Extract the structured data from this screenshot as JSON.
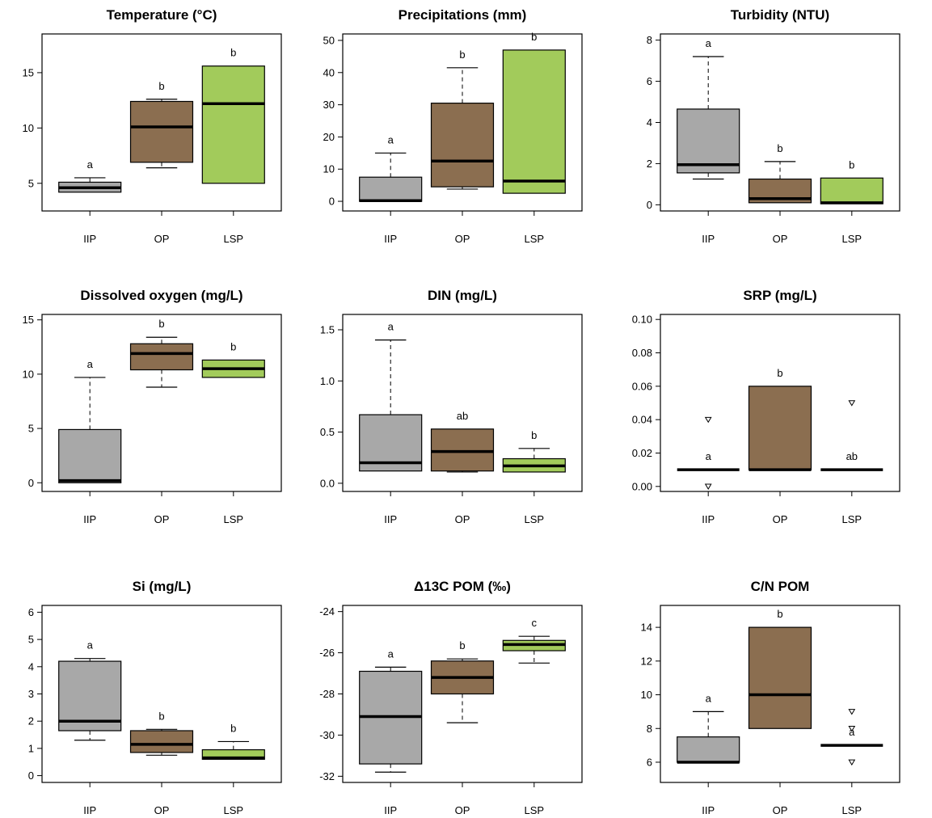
{
  "colors": {
    "IIP": "#a8a8a8",
    "OP": "#8b6e50",
    "LSP": "#a2cb5b"
  },
  "chart_data": [
    {
      "type": "box",
      "title": "Temperature (°C)",
      "categories": [
        "IIP",
        "OP",
        "LSP"
      ],
      "ylim": [
        2.5,
        18.5
      ],
      "yticks": [
        5,
        10,
        15
      ],
      "boxes": [
        {
          "min": 4.2,
          "q1": 4.2,
          "median": 4.6,
          "q3": 5.1,
          "max": 5.5,
          "sig": "a"
        },
        {
          "min": 6.4,
          "q1": 6.9,
          "median": 10.1,
          "q3": 12.4,
          "max": 12.6,
          "sig": "b"
        },
        {
          "min": 5.0,
          "q1": 5.0,
          "median": 12.2,
          "q3": 15.6,
          "max": 15.6,
          "sig": "b"
        }
      ],
      "outliers": []
    },
    {
      "type": "box",
      "title": "Precipitations (mm)",
      "categories": [
        "IIP",
        "OP",
        "LSP"
      ],
      "ylim": [
        -3,
        52
      ],
      "yticks": [
        0,
        10,
        20,
        30,
        40,
        50
      ],
      "boxes": [
        {
          "min": 0,
          "q1": 0,
          "median": 0.2,
          "q3": 7.5,
          "max": 15.0,
          "sig": "a"
        },
        {
          "min": 3.8,
          "q1": 4.5,
          "median": 12.5,
          "q3": 30.5,
          "max": 41.5,
          "sig": "b"
        },
        {
          "min": 2.5,
          "q1": 2.5,
          "median": 6.3,
          "q3": 47.0,
          "max": 47.0,
          "sig": "b"
        }
      ],
      "outliers": []
    },
    {
      "type": "box",
      "title": "Turbidity (NTU)",
      "categories": [
        "IIP",
        "OP",
        "LSP"
      ],
      "ylim": [
        -0.3,
        8.3
      ],
      "yticks": [
        0,
        2,
        4,
        6,
        8
      ],
      "boxes": [
        {
          "min": 1.25,
          "q1": 1.55,
          "median": 1.95,
          "q3": 4.65,
          "max": 7.2,
          "sig": "a"
        },
        {
          "min": 0.1,
          "q1": 0.1,
          "median": 0.3,
          "q3": 1.25,
          "max": 2.1,
          "sig": "b"
        },
        {
          "min": 0.05,
          "q1": 0.05,
          "median": 0.1,
          "q3": 1.3,
          "max": 1.3,
          "sig": "b"
        }
      ],
      "outliers": []
    },
    {
      "type": "box",
      "title": "Dissolved oxygen (mg/L)",
      "categories": [
        "IIP",
        "OP",
        "LSP"
      ],
      "ylim": [
        -0.8,
        15.5
      ],
      "yticks": [
        0,
        5,
        10,
        15
      ],
      "boxes": [
        {
          "min": 0,
          "q1": 0,
          "median": 0.2,
          "q3": 4.9,
          "max": 9.7,
          "sig": "a"
        },
        {
          "min": 8.8,
          "q1": 10.4,
          "median": 11.9,
          "q3": 12.8,
          "max": 13.4,
          "sig": "b"
        },
        {
          "min": 9.7,
          "q1": 9.7,
          "median": 10.5,
          "q3": 11.3,
          "max": 11.3,
          "sig": "b"
        }
      ],
      "outliers": []
    },
    {
      "type": "box",
      "title": "DIN (mg/L)",
      "categories": [
        "IIP",
        "OP",
        "LSP"
      ],
      "ylim": [
        -0.08,
        1.65
      ],
      "yticks": [
        0.0,
        0.5,
        1.0,
        1.5
      ],
      "tick_labels": [
        "0.0",
        "0.5",
        "1.0",
        "1.5"
      ],
      "boxes": [
        {
          "min": 0.12,
          "q1": 0.12,
          "median": 0.2,
          "q3": 0.67,
          "max": 1.4,
          "sig": "a"
        },
        {
          "min": 0.11,
          "q1": 0.12,
          "median": 0.31,
          "q3": 0.53,
          "max": 0.53,
          "sig": "ab"
        },
        {
          "min": 0.11,
          "q1": 0.11,
          "median": 0.17,
          "q3": 0.24,
          "max": 0.34,
          "sig": "b"
        }
      ],
      "outliers": []
    },
    {
      "type": "box",
      "title": "SRP (mg/L)",
      "categories": [
        "IIP",
        "OP",
        "LSP"
      ],
      "ylim": [
        -0.003,
        0.103
      ],
      "yticks": [
        0.0,
        0.02,
        0.04,
        0.06,
        0.08,
        0.1
      ],
      "tick_labels": [
        "0.00",
        "0.02",
        "0.04",
        "0.06",
        "0.08",
        "0.10"
      ],
      "boxes": [
        {
          "min": 0.01,
          "q1": 0.01,
          "median": 0.01,
          "q3": 0.01,
          "max": 0.01,
          "sig": "a"
        },
        {
          "min": 0.01,
          "q1": 0.01,
          "median": 0.01,
          "q3": 0.06,
          "max": 0.06,
          "sig": "b"
        },
        {
          "min": 0.01,
          "q1": 0.01,
          "median": 0.01,
          "q3": 0.01,
          "max": 0.01,
          "sig": "ab"
        }
      ],
      "outliers": [
        {
          "group": 0,
          "value": 0.04
        },
        {
          "group": 0,
          "value": 0.0
        },
        {
          "group": 2,
          "value": 0.05
        }
      ]
    },
    {
      "type": "box",
      "title": "Si (mg/L)",
      "categories": [
        "IIP",
        "OP",
        "LSP"
      ],
      "ylim": [
        -0.25,
        6.25
      ],
      "yticks": [
        0,
        1,
        2,
        3,
        4,
        5,
        6
      ],
      "boxes": [
        {
          "min": 1.3,
          "q1": 1.65,
          "median": 2.0,
          "q3": 4.2,
          "max": 4.3,
          "sig": "a"
        },
        {
          "min": 0.75,
          "q1": 0.85,
          "median": 1.15,
          "q3": 1.65,
          "max": 1.7,
          "sig": "b"
        },
        {
          "min": 0.6,
          "q1": 0.6,
          "median": 0.65,
          "q3": 0.95,
          "max": 1.25,
          "sig": "b"
        }
      ],
      "outliers": []
    },
    {
      "type": "box",
      "title": "Δ13C POM (‰)",
      "categories": [
        "IIP",
        "OP",
        "LSP"
      ],
      "ylim": [
        -32.3,
        -23.7
      ],
      "yticks": [
        -32,
        -30,
        -28,
        -26,
        -24
      ],
      "boxes": [
        {
          "min": -31.8,
          "q1": -31.4,
          "median": -29.1,
          "q3": -26.9,
          "max": -26.7,
          "sig": "a"
        },
        {
          "min": -29.4,
          "q1": -28.0,
          "median": -27.2,
          "q3": -26.4,
          "max": -26.3,
          "sig": "b"
        },
        {
          "min": -26.5,
          "q1": -25.9,
          "median": -25.6,
          "q3": -25.4,
          "max": -25.2,
          "sig": "c"
        }
      ],
      "outliers": []
    },
    {
      "type": "box",
      "title": "C/N POM",
      "categories": [
        "IIP",
        "OP",
        "LSP"
      ],
      "ylim": [
        4.8,
        15.3
      ],
      "yticks": [
        6,
        8,
        10,
        12,
        14
      ],
      "boxes": [
        {
          "min": 6.0,
          "q1": 6.0,
          "median": 6.0,
          "q3": 7.5,
          "max": 9.0,
          "sig": "a"
        },
        {
          "min": 8.0,
          "q1": 8.0,
          "median": 10.0,
          "q3": 14.0,
          "max": 14.0,
          "sig": "b"
        },
        {
          "min": 7.0,
          "q1": 7.0,
          "median": 7.0,
          "q3": 7.0,
          "max": 7.0,
          "sig": "a"
        }
      ],
      "outliers": [
        {
          "group": 2,
          "value": 9.0
        },
        {
          "group": 2,
          "value": 8.0
        },
        {
          "group": 2,
          "value": 6.0
        }
      ]
    }
  ]
}
